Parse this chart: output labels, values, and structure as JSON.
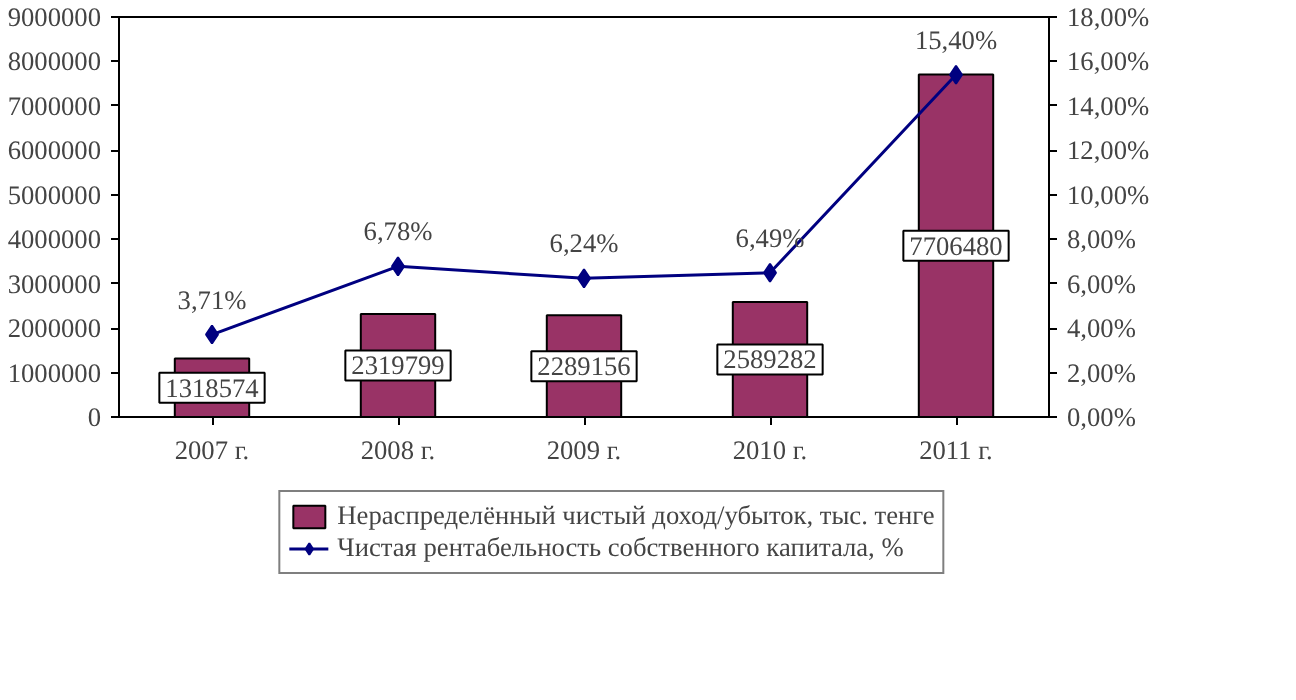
{
  "chart_data": {
    "type": "bar",
    "categories": [
      "2007 г.",
      "2008 г.",
      "2009 г.",
      "2010 г.",
      "2011 г."
    ],
    "ylim": [
      0,
      9000000
    ],
    "yticks": [
      0,
      1000000,
      2000000,
      3000000,
      4000000,
      5000000,
      6000000,
      7000000,
      8000000,
      9000000
    ],
    "y2lim": [
      0,
      18
    ],
    "y2ticks": [
      {
        "value": 0,
        "label": "0,00%"
      },
      {
        "value": 2,
        "label": "2,00%"
      },
      {
        "value": 4,
        "label": "4,00%"
      },
      {
        "value": 6,
        "label": "6,00%"
      },
      {
        "value": 8,
        "label": "8,00%"
      },
      {
        "value": 10,
        "label": "10,00%"
      },
      {
        "value": 12,
        "label": "12,00%"
      },
      {
        "value": 14,
        "label": "14,00%"
      },
      {
        "value": 16,
        "label": "16,00%"
      },
      {
        "value": 18,
        "label": "18,00%"
      }
    ],
    "series": [
      {
        "name": "Нераспределённый чистый доход/убыток, тыс. тенге",
        "color": "#993366",
        "values": [
          1318574,
          2319799,
          2289156,
          2589282,
          7706480
        ],
        "value_labels": [
          "1318574",
          "2319799",
          "2289156",
          "2589282",
          "7706480"
        ]
      },
      {
        "name": "Чистая рентабельность собственного капитала, %",
        "type": "line",
        "axis": "y2",
        "color": "#000080",
        "marker": "diamond",
        "values": [
          3.71,
          6.78,
          6.24,
          6.49,
          15.4
        ],
        "value_labels": [
          "3,71%",
          "6,78%",
          "6,24%",
          "6,49%",
          "15,40%"
        ]
      }
    ],
    "grid": false,
    "legend": "bottom"
  }
}
